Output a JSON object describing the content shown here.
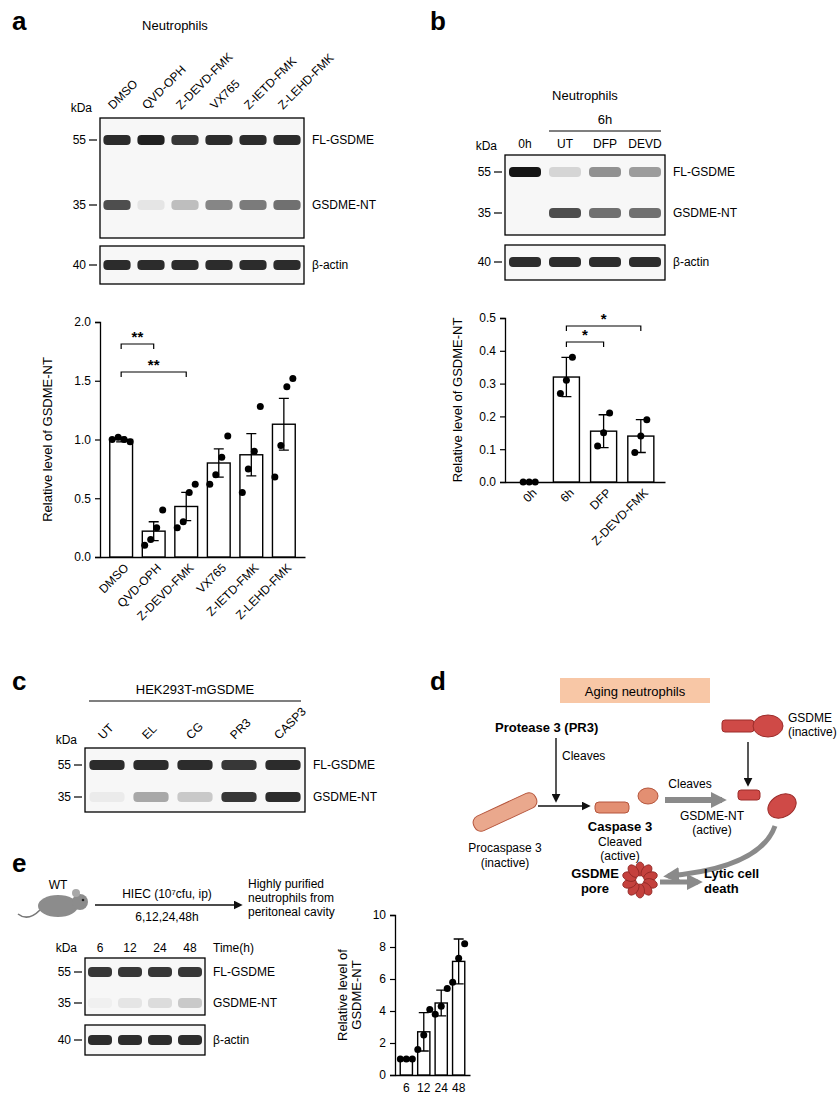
{
  "panel_labels": [
    "a",
    "b",
    "c",
    "d",
    "e"
  ],
  "chart_data": [
    {
      "type": "bar",
      "y_label": "Relative level of GSDME-NT",
      "categories": [
        "DMSO",
        "QVD-OPH",
        "Z-DEVD-FMK",
        "VX765",
        "Z-IETD-FMK",
        "Z-LEHD-FMK"
      ],
      "values": [
        1.0,
        0.22,
        0.43,
        0.8,
        0.87,
        1.13
      ],
      "errors": [
        0.02,
        0.08,
        0.12,
        0.12,
        0.18,
        0.22
      ],
      "points": [
        [
          1.0,
          1.02,
          1.0,
          0.98
        ],
        [
          0.1,
          0.15,
          0.25,
          0.4
        ],
        [
          0.25,
          0.3,
          0.55,
          0.62
        ],
        [
          0.62,
          0.7,
          0.85,
          1.03
        ],
        [
          0.55,
          0.75,
          0.9,
          1.28
        ],
        [
          0.68,
          0.95,
          1.45,
          1.52
        ]
      ],
      "significance": [
        {
          "from": 0,
          "to": 1,
          "label": "**"
        },
        {
          "from": 0,
          "to": 2,
          "label": "**"
        }
      ],
      "color": "#ffffff",
      "ylim": [
        0,
        2
      ],
      "yticks": [
        {
          "value": 0,
          "label": "0.0"
        },
        {
          "value": 0.5,
          "label": "0.5"
        },
        {
          "value": 1,
          "label": "1.0"
        },
        {
          "value": 1.5,
          "label": "1.5"
        },
        {
          "value": 2,
          "label": "2.0"
        }
      ]
    },
    {
      "type": "bar",
      "y_label": "Relative level of GSDME-NT",
      "categories": [
        "0h",
        "6h",
        "DFP",
        "Z-DEVD-FMK"
      ],
      "values": [
        0,
        0.32,
        0.155,
        0.14
      ],
      "errors": [
        0,
        0.06,
        0.05,
        0.05
      ],
      "points": [
        [
          0,
          0,
          0
        ],
        [
          0.27,
          0.31,
          0.38
        ],
        [
          0.11,
          0.15,
          0.21
        ],
        [
          0.09,
          0.14,
          0.19
        ]
      ],
      "significance": [
        {
          "from": 1,
          "to": 3,
          "label": "*"
        },
        {
          "from": 1,
          "to": 2,
          "label": "*"
        }
      ],
      "color": "#ffffff",
      "ylim": [
        0,
        0.5
      ],
      "yticks": [
        {
          "value": 0,
          "label": "0.0"
        },
        {
          "value": 0.1,
          "label": "0.1"
        },
        {
          "value": 0.2,
          "label": "0.2"
        },
        {
          "value": 0.3,
          "label": "0.3"
        },
        {
          "value": 0.4,
          "label": "0.4"
        },
        {
          "value": 0.5,
          "label": "0.5"
        }
      ]
    },
    {
      "type": "bar",
      "y_label": [
        "Relative level of",
        "GSDME-NT"
      ],
      "categories": [
        "6",
        "12",
        "24",
        "48"
      ],
      "values": [
        1.0,
        2.7,
        4.5,
        7.1
      ],
      "errors": [
        0.05,
        1.2,
        0.8,
        1.4
      ],
      "points": [
        [
          1,
          1,
          1
        ],
        [
          1.6,
          2.5,
          4.1
        ],
        [
          3.8,
          4.3,
          5.4
        ],
        [
          5.8,
          7.3,
          8.2
        ]
      ],
      "color": "#ffffff",
      "ylim": [
        0,
        10
      ],
      "yticks": [
        0,
        2,
        4,
        6,
        8,
        10
      ]
    }
  ],
  "blots": [
    {
      "header": "Neutrophils",
      "kda": "kDa",
      "lanes": [
        "DMSO",
        "QVD-OPH",
        "Z-DEVD-FMK",
        "VX765",
        "Z-IETD-FMK",
        "Z-LEHD-FMK"
      ],
      "membranes": [
        {
          "rows": [
            {
              "marker": 55,
              "label": "FL-GSDME",
              "intensity": [
                0.9,
                0.95,
                0.85,
                0.9,
                0.9,
                0.9
              ]
            },
            {
              "marker": 35,
              "label": "GSDME-NT",
              "intensity": [
                0.75,
                0.08,
                0.25,
                0.5,
                0.55,
                0.6
              ]
            }
          ]
        },
        {
          "rows": [
            {
              "marker": 40,
              "label": "β-actin",
              "intensity": [
                0.9,
                0.9,
                0.9,
                0.9,
                0.9,
                0.9
              ]
            }
          ]
        }
      ]
    },
    {
      "header": "Neutrophils",
      "group": {
        "label": "6h",
        "from": 1,
        "to": 3
      },
      "kda": "kDa",
      "lanes": [
        "0h",
        "UT",
        "DFP",
        "DEVD"
      ],
      "membranes": [
        {
          "rows": [
            {
              "marker": 55,
              "label": "FL-GSDME",
              "intensity": [
                1.0,
                0.15,
                0.45,
                0.4
              ]
            },
            {
              "marker": 35,
              "label": "GSDME-NT",
              "intensity": [
                0,
                0.75,
                0.6,
                0.6
              ]
            }
          ]
        },
        {
          "rows": [
            {
              "marker": 40,
              "label": "β-actin",
              "intensity": [
                0.9,
                0.9,
                0.9,
                0.9
              ]
            }
          ]
        }
      ]
    },
    {
      "group": {
        "label": "HEK293T-mGSDME",
        "from": 0,
        "to": 4
      },
      "kda": "kDa",
      "lanes": [
        "UT",
        "EL",
        "CG",
        "PR3",
        "CASP3"
      ],
      "membranes": [
        {
          "rows": [
            {
              "marker": 55,
              "label": "FL-GSDME",
              "intensity": [
                0.9,
                0.9,
                0.9,
                0.85,
                0.9
              ]
            },
            {
              "marker": 35,
              "label": "GSDME-NT",
              "intensity": [
                0.05,
                0.35,
                0.2,
                0.85,
                0.9
              ]
            }
          ]
        }
      ]
    },
    {
      "kda": "kDa",
      "lanes": [
        "6",
        "12",
        "24",
        "48"
      ],
      "lane_title": "Time(h)",
      "membranes": [
        {
          "rows": [
            {
              "marker": 55,
              "label": "FL-GSDME",
              "intensity": [
                0.85,
                0.85,
                0.85,
                0.85
              ]
            },
            {
              "marker": 35,
              "label": "GSDME-NT",
              "intensity": [
                0.03,
                0.08,
                0.12,
                0.2
              ]
            }
          ]
        },
        {
          "rows": [
            {
              "marker": 40,
              "label": "β-actin",
              "intensity": [
                0.9,
                0.9,
                0.9,
                0.9
              ]
            }
          ]
        }
      ]
    }
  ],
  "diagram": {
    "header": "Aging neutrophils",
    "enzyme": "Protease 3 (PR3)",
    "cleaves_1": "Cleaves",
    "pro": [
      "Procaspase 3",
      "(inactive)"
    ],
    "active": "Caspase 3",
    "active_state": [
      "Cleaved",
      "(active)"
    ],
    "substrate": [
      "GSDME",
      "(inactive)"
    ],
    "cleaves_2": "Cleaves",
    "product": [
      "GSDME-NT",
      "(active)"
    ],
    "pore": [
      "GSDME",
      "pore"
    ],
    "outcome": [
      "Lytic cell",
      "death"
    ]
  },
  "scheme": {
    "mouse": "WT",
    "treatment": "HIEC (10⁷cfu, ip)",
    "times": "6,12,24,48h",
    "result": [
      "Highly purified",
      "neutrophils from",
      "peritoneal cavity"
    ]
  }
}
